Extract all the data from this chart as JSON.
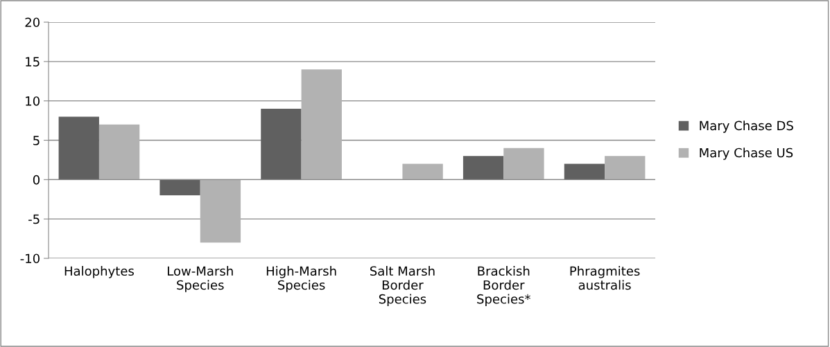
{
  "chart_data": {
    "type": "bar",
    "categories": [
      "Halophytes",
      "Low-Marsh\nSpecies",
      "High-Marsh\nSpecies",
      "Salt Marsh\nBorder\nSpecies",
      "Brackish\nBorder\nSpecies*",
      "Phragmites\naustralis"
    ],
    "series": [
      {
        "name": "Mary Chase DS",
        "color": "#606060",
        "values": [
          8,
          -2,
          9,
          0,
          3,
          2
        ]
      },
      {
        "name": "Mary Chase US",
        "color": "#b2b2b2",
        "values": [
          7,
          -8,
          14,
          2,
          4,
          3
        ]
      }
    ],
    "ylim": [
      -10,
      20
    ],
    "yticks": [
      -10,
      -5,
      0,
      5,
      10,
      15,
      20
    ],
    "grid": "y",
    "legend": "right"
  }
}
